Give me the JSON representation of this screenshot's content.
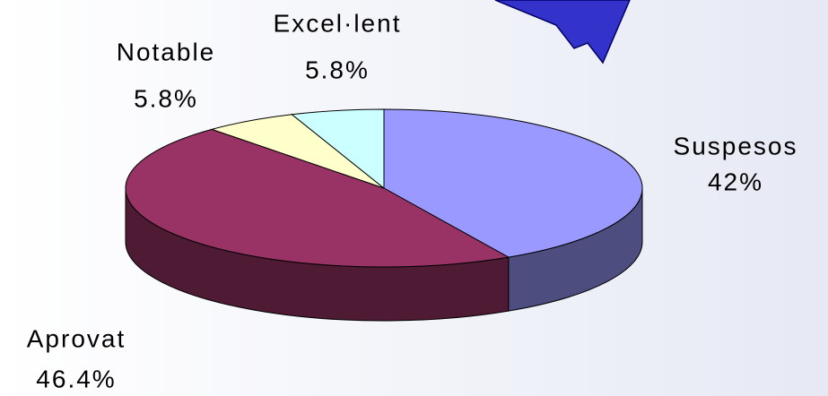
{
  "chart_data": {
    "type": "pie3d",
    "categories": [
      "Suspesos",
      "Aprovat",
      "Notable",
      "Excel·lent"
    ],
    "values": [
      42,
      46.4,
      5.8,
      5.8
    ],
    "value_labels": [
      "42%",
      "46.4%",
      "5.8%",
      "5.8%"
    ],
    "colors": [
      "#9999ff",
      "#993366",
      "#ffffcc",
      "#ccffff"
    ],
    "side_colors": [
      "#4d4d80",
      "#4f1a33",
      "#80806a",
      "#6a8080"
    ]
  }
}
